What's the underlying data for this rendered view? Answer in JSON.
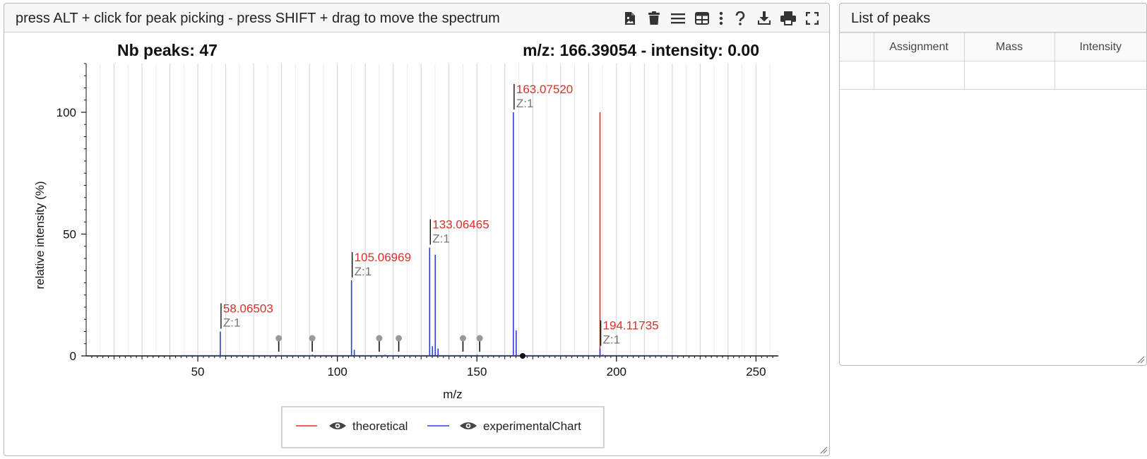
{
  "spectrum_panel": {
    "title": "press ALT + click for peak picking - press SHIFT + drag to move the spectrum",
    "toolbar_icons": [
      "image-export-icon",
      "trash-icon",
      "menu-lines-icon",
      "table-icon",
      "kebab-icon",
      "help-icon",
      "download-icon",
      "print-icon",
      "fullscreen-icon"
    ]
  },
  "peaks_panel": {
    "title": "List of peaks",
    "columns": [
      "",
      "Assignment",
      "Mass",
      "Intensity"
    ]
  },
  "colors": {
    "theoretical": "#e03030",
    "experimental": "#2b3ed4",
    "label_mass": "#d9302a",
    "label_charge": "#777777",
    "grid": "#dddddd"
  },
  "chart_data": {
    "type": "spectrum",
    "header_left": "Nb peaks: 47",
    "header_right": "m/z: 166.39054 - intensity: 0.00",
    "xlabel": "m/z",
    "ylabel": "relative intensity (%)",
    "xlim": [
      10,
      258
    ],
    "ylim": [
      0,
      120
    ],
    "x_ticks": [
      50,
      100,
      150,
      200,
      250
    ],
    "y_ticks": [
      0,
      50,
      100
    ],
    "grid": true,
    "legend_position": "bottom",
    "series": [
      {
        "name": "theoretical",
        "color": "#e03030",
        "peaks": [
          [
            194.1,
            100
          ]
        ]
      },
      {
        "name": "experimentalChart",
        "color": "#2b3ed4",
        "peaks": [
          [
            44.1,
            0.3
          ],
          [
            58.06503,
            10
          ],
          [
            91.1,
            0.5
          ],
          [
            105.06969,
            31
          ],
          [
            106.07,
            2.5
          ],
          [
            117.1,
            0.5
          ],
          [
            133.06465,
            44.5
          ],
          [
            134.07,
            4
          ],
          [
            135.08,
            41.5
          ],
          [
            136.08,
            3
          ],
          [
            150.1,
            0.5
          ],
          [
            163.0752,
            100
          ],
          [
            164.08,
            10.5
          ],
          [
            194.11735,
            3
          ],
          [
            195.12,
            0.5
          ]
        ]
      }
    ],
    "annotations": [
      {
        "mz": 58.06503,
        "label": "58.06503",
        "charge": "Z:1",
        "intensity": 10
      },
      {
        "mz": 105.06969,
        "label": "105.06969",
        "charge": "Z:1",
        "intensity": 31
      },
      {
        "mz": 133.06465,
        "label": "133.06465",
        "charge": "Z:1",
        "intensity": 44.5
      },
      {
        "mz": 163.0752,
        "label": "163.07520",
        "charge": "Z:1",
        "intensity": 100
      },
      {
        "mz": 194.11735,
        "label": "194.11735",
        "charge": "Z:1",
        "intensity": 3
      }
    ],
    "markers": [
      79,
      91,
      115,
      122,
      145,
      151
    ],
    "cursor_mz": 166.39054
  }
}
